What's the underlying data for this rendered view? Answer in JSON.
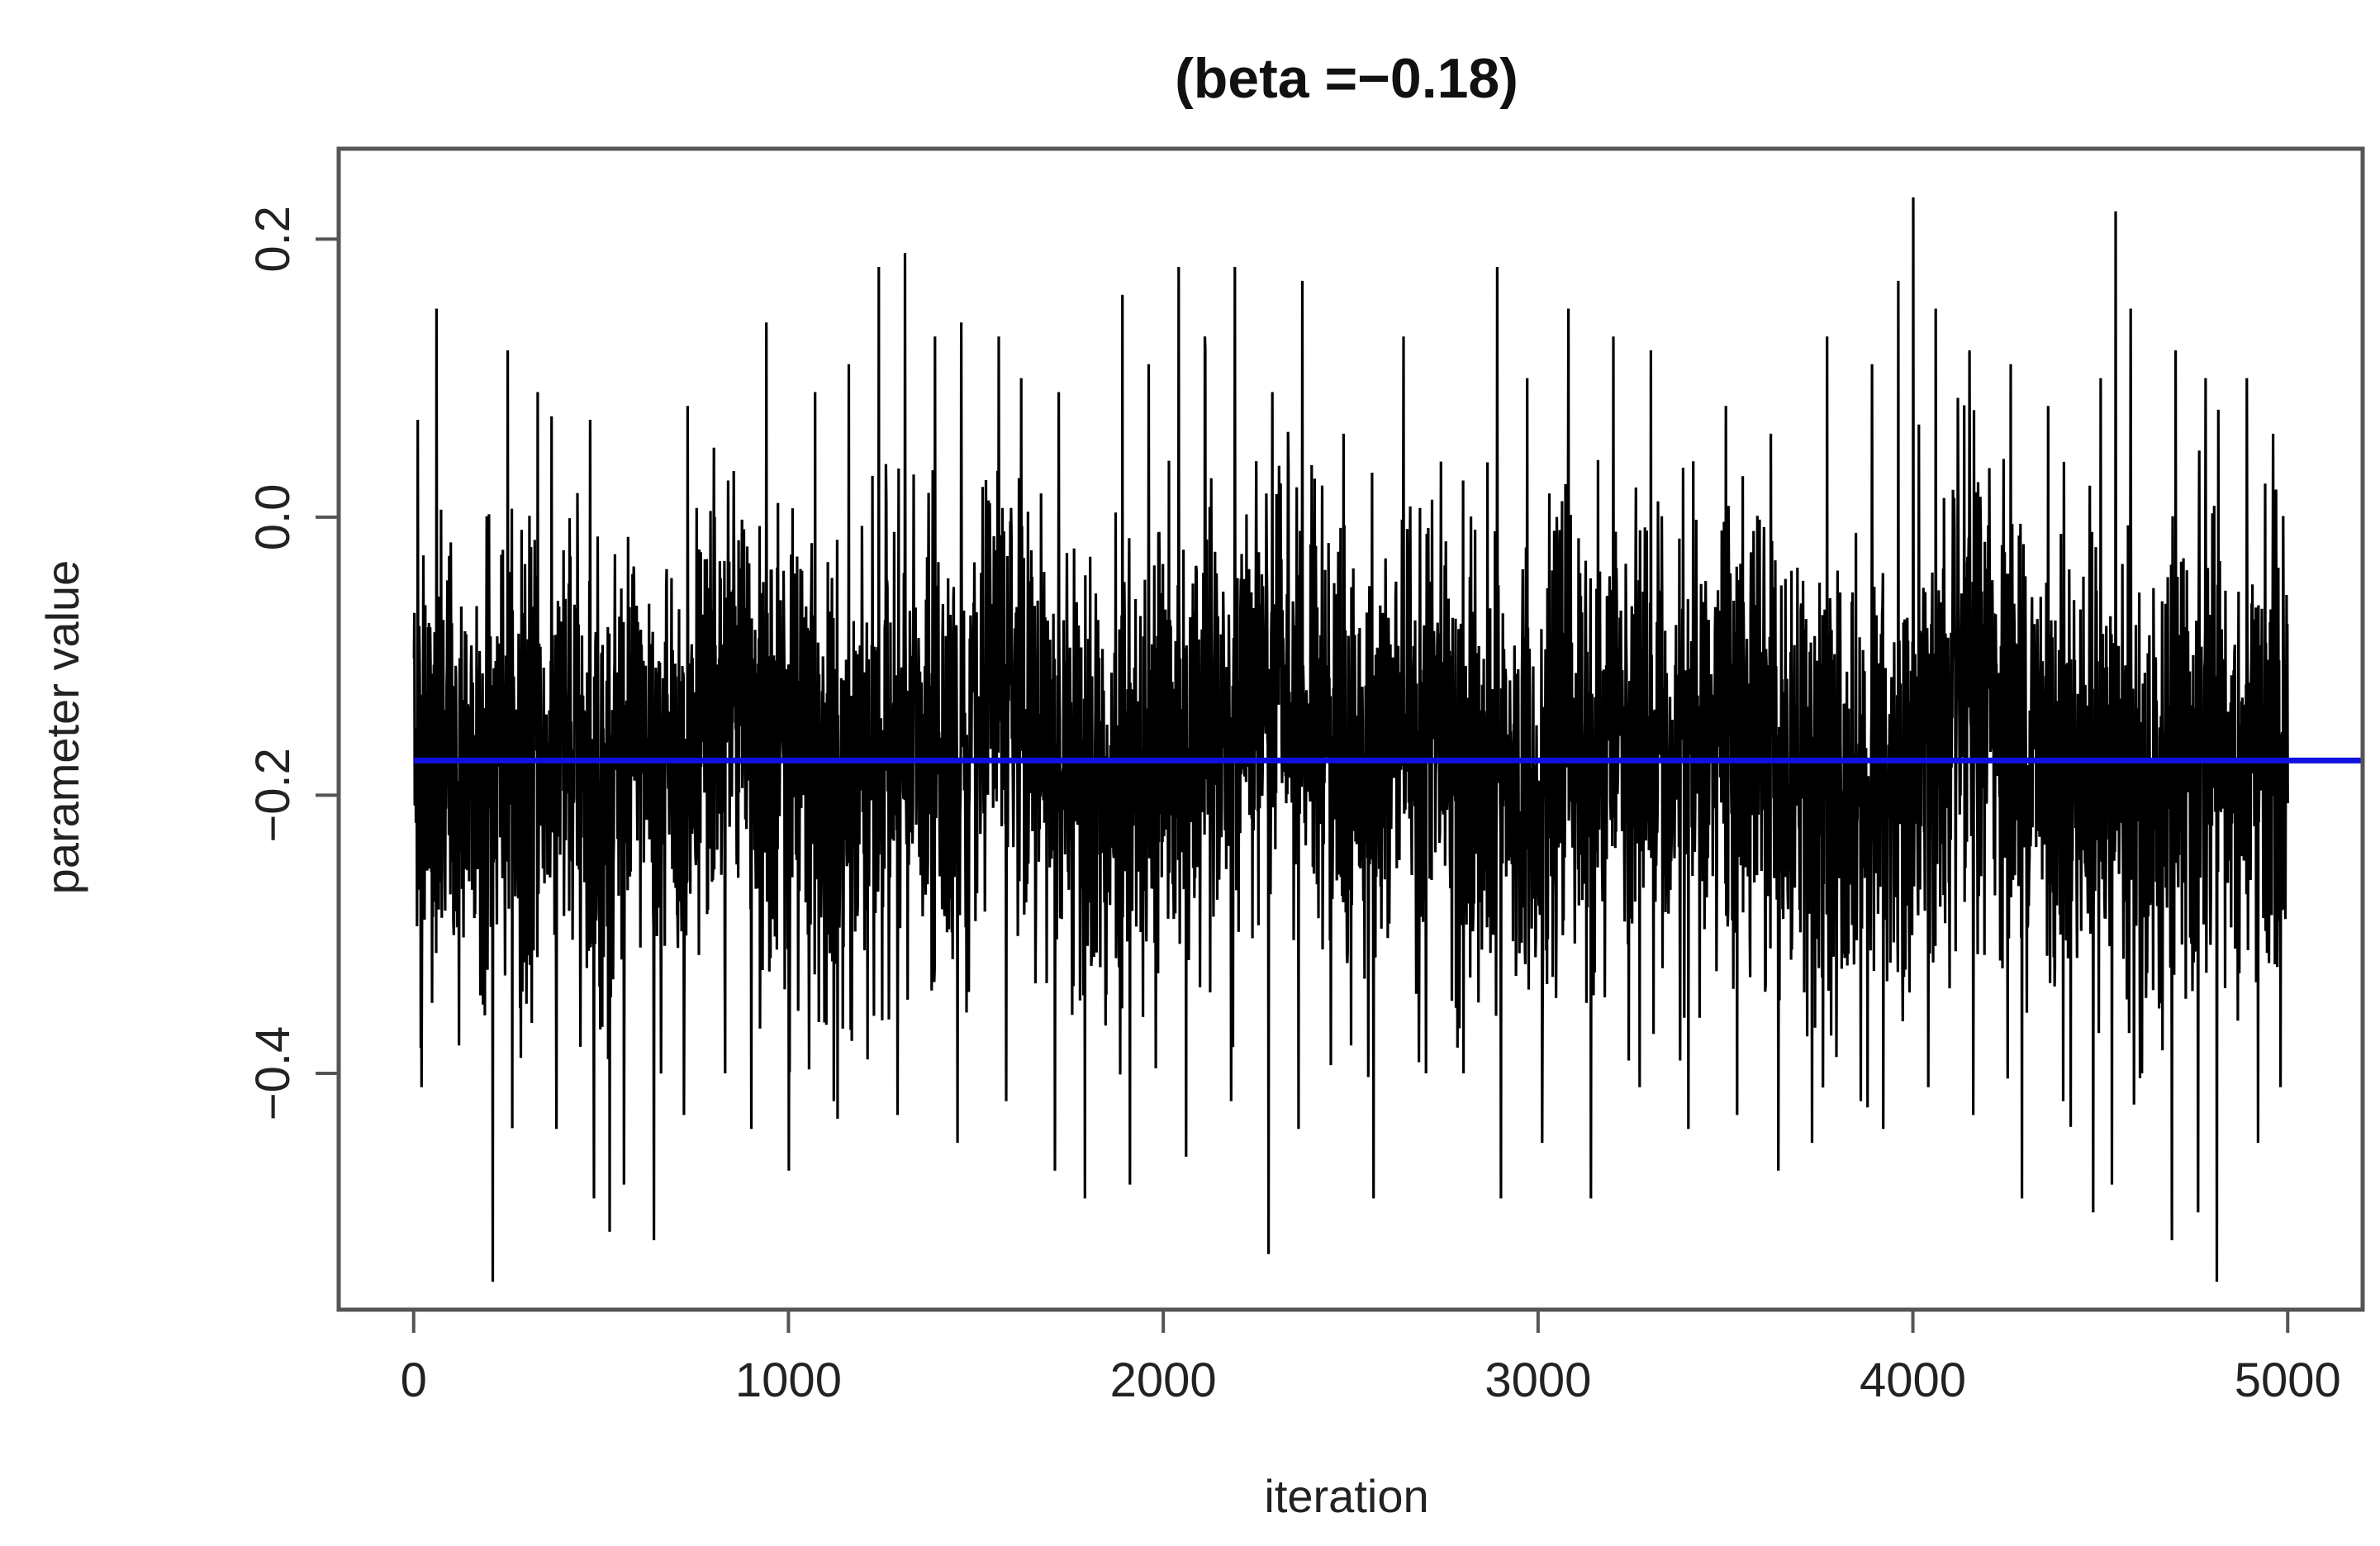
{
  "chart_data": {
    "type": "line",
    "title": "(beta =−0.18)",
    "xlabel": "iteration",
    "ylabel": "parameter value",
    "xlim": [
      -200,
      5200
    ],
    "ylim": [
      -0.57,
      0.265
    ],
    "xticks": [
      0,
      1000,
      2000,
      3000,
      4000,
      5000
    ],
    "xtick_labels": [
      "0",
      "1000",
      "2000",
      "3000",
      "4000",
      "5000"
    ],
    "yticks": [
      0.2,
      0.0,
      -0.2,
      -0.4
    ],
    "ytick_labels": [
      "0.2",
      "0.0",
      "−0.2",
      "−0.4"
    ],
    "grid": false,
    "series": [
      {
        "style": "trace",
        "color": "#000000",
        "n_iterations": 5000,
        "mean": -0.175,
        "typical_range": [
          -0.33,
          -0.02
        ],
        "max": 0.23,
        "min": -0.55,
        "upper_extremes": [
          [
            10,
            0.07
          ],
          [
            60,
            0.15
          ],
          [
            120,
            0.08
          ],
          [
            250,
            0.12
          ],
          [
            330,
            0.09
          ],
          [
            470,
            0.07
          ],
          [
            640,
            0.06
          ],
          [
            730,
            0.08
          ],
          [
            800,
            0.05
          ],
          [
            940,
            0.14
          ],
          [
            1070,
            0.09
          ],
          [
            1160,
            0.11
          ],
          [
            1210,
            0.2
          ],
          [
            1240,
            0.18
          ],
          [
            1310,
            0.19
          ],
          [
            1390,
            0.13
          ],
          [
            1460,
            0.14
          ],
          [
            1560,
            0.13
          ],
          [
            1620,
            0.1
          ],
          [
            1720,
            0.09
          ],
          [
            1890,
            0.16
          ],
          [
            1960,
            0.11
          ],
          [
            2040,
            0.18
          ],
          [
            2110,
            0.13
          ],
          [
            2190,
            0.18
          ],
          [
            2290,
            0.09
          ],
          [
            2370,
            0.17
          ],
          [
            2480,
            0.06
          ],
          [
            2640,
            0.13
          ],
          [
            2740,
            0.04
          ],
          [
            2890,
            0.18
          ],
          [
            2970,
            0.1
          ],
          [
            3080,
            0.15
          ],
          [
            3200,
            0.13
          ],
          [
            3300,
            0.12
          ],
          [
            3500,
            0.08
          ],
          [
            3620,
            0.06
          ],
          [
            3770,
            0.13
          ],
          [
            3890,
            0.11
          ],
          [
            3960,
            0.17
          ],
          [
            4000,
            0.23
          ],
          [
            4060,
            0.15
          ],
          [
            4150,
            0.12
          ],
          [
            4260,
            0.11
          ],
          [
            4360,
            0.08
          ],
          [
            4500,
            0.1
          ],
          [
            4540,
            0.22
          ],
          [
            4580,
            0.15
          ],
          [
            4700,
            0.12
          ],
          [
            4780,
            0.1
          ],
          [
            4890,
            0.1
          ],
          [
            4960,
            0.06
          ]
        ],
        "lower_extremes": [
          [
            20,
            -0.41
          ],
          [
            120,
            -0.38
          ],
          [
            210,
            -0.55
          ],
          [
            300,
            -0.35
          ],
          [
            380,
            -0.44
          ],
          [
            480,
            -0.49
          ],
          [
            560,
            -0.48
          ],
          [
            640,
            -0.52
          ],
          [
            720,
            -0.43
          ],
          [
            830,
            -0.4
          ],
          [
            900,
            -0.44
          ],
          [
            1000,
            -0.47
          ],
          [
            1120,
            -0.42
          ],
          [
            1210,
            -0.39
          ],
          [
            1290,
            -0.43
          ],
          [
            1450,
            -0.45
          ],
          [
            1580,
            -0.42
          ],
          [
            1710,
            -0.47
          ],
          [
            1790,
            -0.49
          ],
          [
            1910,
            -0.48
          ],
          [
            2060,
            -0.46
          ],
          [
            2180,
            -0.42
          ],
          [
            2280,
            -0.53
          ],
          [
            2360,
            -0.44
          ],
          [
            2500,
            -0.38
          ],
          [
            2560,
            -0.49
          ],
          [
            2700,
            -0.4
          ],
          [
            2800,
            -0.4
          ],
          [
            2900,
            -0.49
          ],
          [
            3010,
            -0.45
          ],
          [
            3140,
            -0.49
          ],
          [
            3270,
            -0.41
          ],
          [
            3400,
            -0.44
          ],
          [
            3530,
            -0.43
          ],
          [
            3640,
            -0.47
          ],
          [
            3730,
            -0.45
          ],
          [
            3860,
            -0.42
          ],
          [
            3920,
            -0.44
          ],
          [
            4040,
            -0.41
          ],
          [
            4160,
            -0.43
          ],
          [
            4290,
            -0.49
          ],
          [
            4400,
            -0.42
          ],
          [
            4480,
            -0.5
          ],
          [
            4530,
            -0.48
          ],
          [
            4610,
            -0.4
          ],
          [
            4690,
            -0.52
          ],
          [
            4760,
            -0.5
          ],
          [
            4810,
            -0.55
          ],
          [
            4920,
            -0.45
          ],
          [
            4980,
            -0.41
          ]
        ]
      },
      {
        "style": "hline",
        "color": "#1010e0",
        "y": -0.175
      }
    ]
  }
}
